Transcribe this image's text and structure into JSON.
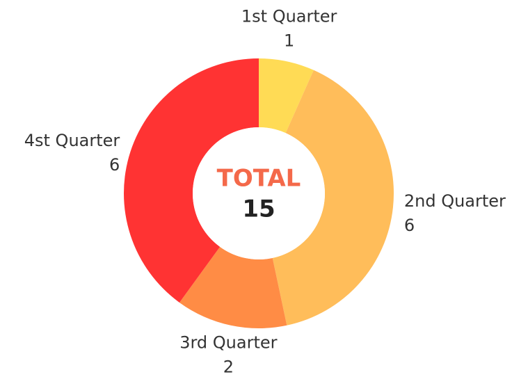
{
  "chart_data": {
    "type": "donut",
    "categories": [
      "1st Quarter",
      "2nd Quarter",
      "3rd Quarter",
      "4st Quarter"
    ],
    "values": [
      1,
      6,
      2,
      6
    ],
    "colors": [
      "#ffdb55",
      "#ffbd5a",
      "#ff8c45",
      "#ff3333"
    ],
    "center_label": "TOTAL",
    "center_value": 15
  }
}
